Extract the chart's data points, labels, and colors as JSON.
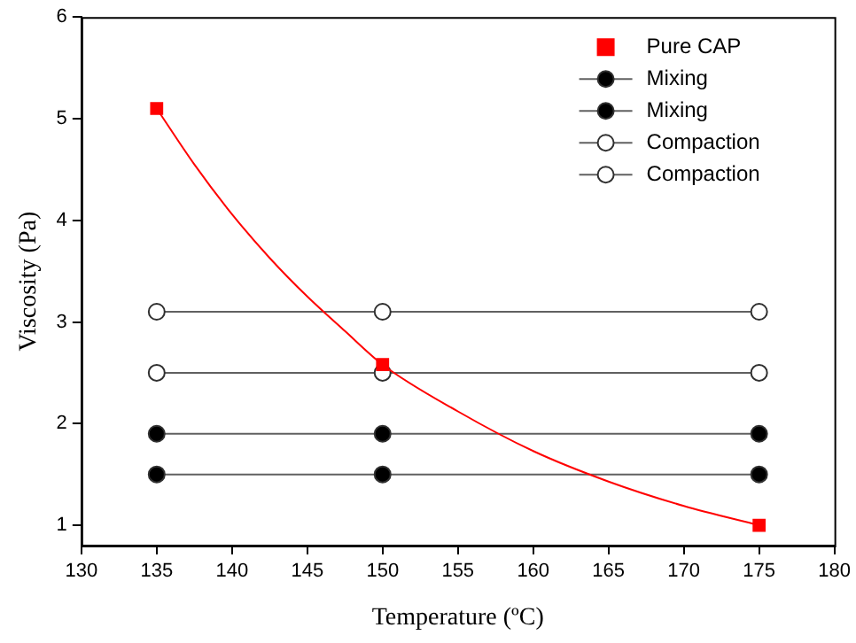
{
  "chart_data": {
    "type": "scatter",
    "xlabel": "Temperature (ºC)",
    "ylabel": "Viscosity (Pa)",
    "x": [
      135,
      150,
      175
    ],
    "xlim": [
      130,
      180
    ],
    "xticks": [
      130,
      135,
      140,
      145,
      150,
      155,
      160,
      165,
      170,
      175,
      180
    ],
    "ylim": [
      0.8,
      6
    ],
    "yticks": [
      1,
      2,
      3,
      4,
      5,
      6
    ],
    "grid": false,
    "legend": "top right",
    "series": [
      {
        "name": "Pure CAP",
        "marker": "square",
        "color": "#ff0000",
        "values": [
          5.1,
          2.58,
          1.0
        ]
      },
      {
        "type": "line",
        "marker": "none",
        "color": "#ff0000",
        "x": [
          135,
          137.5,
          140,
          142.5,
          145,
          147.5,
          150,
          155,
          160,
          165,
          170,
          175
        ],
        "values": [
          5.1,
          4.55,
          4.06,
          3.63,
          3.25,
          2.91,
          2.58,
          2.12,
          1.73,
          1.43,
          1.19,
          1.0
        ]
      },
      {
        "name": "Mixing",
        "type": "line",
        "marker": "circle",
        "color": "#000000",
        "values": [
          1.9,
          1.9,
          1.9
        ]
      },
      {
        "name": "Mixing",
        "type": "line",
        "marker": "circle",
        "color": "#000000",
        "values": [
          1.5,
          1.5,
          1.5
        ]
      },
      {
        "name": "Compaction",
        "type": "line",
        "marker": "circle",
        "color": "#ffffff",
        "values": [
          3.1,
          3.1,
          3.1
        ]
      },
      {
        "name": "Compaction",
        "type": "line",
        "marker": "circle",
        "color": "#ffffff",
        "values": [
          2.5,
          2.5,
          2.5
        ]
      }
    ]
  }
}
